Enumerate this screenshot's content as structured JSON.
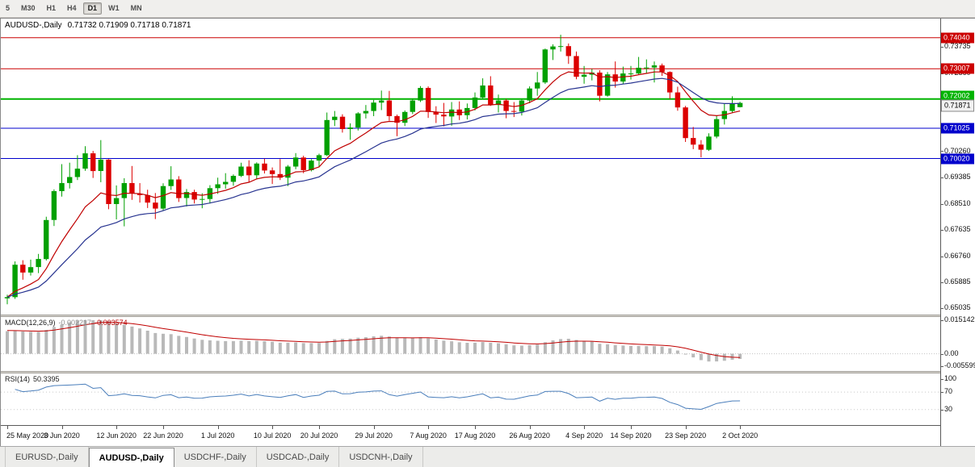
{
  "toolbar": {
    "buttons": [
      {
        "label": "5",
        "active": false
      },
      {
        "label": "M30",
        "active": false
      },
      {
        "label": "H1",
        "active": false
      },
      {
        "label": "H4",
        "active": false
      },
      {
        "label": "D1",
        "active": true
      },
      {
        "label": "W1",
        "active": false
      },
      {
        "label": "MN",
        "active": false
      }
    ]
  },
  "chart": {
    "title": "AUDUSD-,Daily",
    "ohlc": "0.71732 0.71909 0.71718 0.71871"
  },
  "macd": {
    "label": "MACD(12,26,9)",
    "value_main": "-0.002217",
    "value_signal": "-0.003574"
  },
  "rsi": {
    "label": "RSI(14)",
    "value": "50.3395"
  },
  "tabs": [
    {
      "label": "EURUSD-,Daily",
      "active": false
    },
    {
      "label": "AUDUSD-,Daily",
      "active": true
    },
    {
      "label": "USDCHF-,Daily",
      "active": false
    },
    {
      "label": "USDCAD-,Daily",
      "active": false
    },
    {
      "label": "USDCNH-,Daily",
      "active": false
    }
  ],
  "colors": {
    "up": "#00a000",
    "down": "#dc0000",
    "ma_fast": "#c00000",
    "ma_slow": "#273390",
    "macd_hist": "#b9b9b9",
    "macd_signal": "#c00000",
    "rsi_line": "#4a7ebb",
    "level_red": "#cc0000",
    "level_green": "#00b400",
    "level_blue": "#0000cc"
  },
  "chart_data": {
    "type": "candlestick",
    "symbol": "AUDUSD-",
    "timeframe": "Daily",
    "ohlc_display": {
      "open": "0.71732",
      "high": "0.71909",
      "low": "0.71718",
      "close": "0.71871"
    },
    "ylim": [
      0.6482,
      0.7468
    ],
    "y_ticks": [
      "0.73735",
      "0.72860",
      "0.71985",
      "0.71110",
      "0.70260",
      "0.69385",
      "0.68510",
      "0.67635",
      "0.66760",
      "0.65885",
      "0.65035"
    ],
    "x_ticks": [
      {
        "index": 0,
        "label": "25 May 2020"
      },
      {
        "index": 7,
        "label": "3 Jun 2020"
      },
      {
        "index": 14,
        "label": "12 Jun 2020"
      },
      {
        "index": 20,
        "label": "22 Jun 2020"
      },
      {
        "index": 27,
        "label": "1 Jul 2020"
      },
      {
        "index": 34,
        "label": "10 Jul 2020"
      },
      {
        "index": 40,
        "label": "20 Jul 2020"
      },
      {
        "index": 47,
        "label": "29 Jul 2020"
      },
      {
        "index": 54,
        "label": "7 Aug 2020"
      },
      {
        "index": 60,
        "label": "17 Aug 2020"
      },
      {
        "index": 67,
        "label": "26 Aug 2020"
      },
      {
        "index": 74,
        "label": "4 Sep 2020"
      },
      {
        "index": 80,
        "label": "14 Sep 2020"
      },
      {
        "index": 87,
        "label": "23 Sep 2020"
      },
      {
        "index": 94,
        "label": "2 Oct 2020"
      }
    ],
    "levels": [
      {
        "price": 0.7404,
        "label": "0.74040",
        "color": "#cc0000",
        "width": 1
      },
      {
        "price": 0.73007,
        "label": "0.73007",
        "color": "#cc0000",
        "width": 1
      },
      {
        "price": 0.72002,
        "label": "0.72002",
        "color": "#00b400",
        "width": 2
      },
      {
        "price": 0.71025,
        "label": "0.71025",
        "color": "#0000cc",
        "width": 1
      },
      {
        "price": 0.7002,
        "label": "0.70020",
        "color": "#0000cc",
        "width": 1
      }
    ],
    "current_price": {
      "price": 0.71871,
      "label": "0.71871"
    },
    "moving_averages": [
      {
        "name": "fast-ma",
        "period": 10,
        "color": "#c00000"
      },
      {
        "name": "slow-ma",
        "period": 21,
        "color": "#273390"
      }
    ],
    "indicators": {
      "macd": {
        "params": [
          12,
          26,
          9
        ],
        "values_text": [
          "-0.002217",
          "-0.003574"
        ],
        "range": [
          -0.005599,
          0.015142
        ],
        "axis_ticks": [
          {
            "value": 0.015142,
            "label": "0.015142"
          },
          {
            "value": 0,
            "label": "0.00"
          },
          {
            "value": -0.005599,
            "label": "-0.005599"
          }
        ]
      },
      "rsi": {
        "period": 14,
        "value_text": "50.3395",
        "levels": [
          70,
          30
        ],
        "scale": [
          0,
          107
        ],
        "axis_ticks": [
          {
            "value": 100,
            "label": "100"
          },
          {
            "value": 70,
            "label": "70"
          },
          {
            "value": 30,
            "label": "30"
          }
        ]
      }
    },
    "candles": [
      [
        0.6536,
        0.6548,
        0.6516,
        0.654
      ],
      [
        0.654,
        0.6659,
        0.6534,
        0.6648
      ],
      [
        0.6648,
        0.6663,
        0.6598,
        0.6622
      ],
      [
        0.6622,
        0.6665,
        0.6612,
        0.664
      ],
      [
        0.664,
        0.6684,
        0.662,
        0.6667
      ],
      [
        0.6667,
        0.6808,
        0.6662,
        0.6797
      ],
      [
        0.6797,
        0.6899,
        0.6777,
        0.6893
      ],
      [
        0.6893,
        0.6983,
        0.6875,
        0.692
      ],
      [
        0.692,
        0.6988,
        0.6902,
        0.694
      ],
      [
        0.694,
        0.7013,
        0.693,
        0.6968
      ],
      [
        0.6968,
        0.7043,
        0.6961,
        0.7019
      ],
      [
        0.7019,
        0.7027,
        0.6937,
        0.696
      ],
      [
        0.696,
        0.7063,
        0.6923,
        0.6998
      ],
      [
        0.6998,
        0.7,
        0.6833,
        0.685
      ],
      [
        0.685,
        0.6912,
        0.6799,
        0.687
      ],
      [
        0.687,
        0.6936,
        0.6776,
        0.692
      ],
      [
        0.692,
        0.6977,
        0.6864,
        0.6885
      ],
      [
        0.6885,
        0.692,
        0.6855,
        0.688
      ],
      [
        0.688,
        0.6898,
        0.6837,
        0.6855
      ],
      [
        0.6855,
        0.6887,
        0.68,
        0.6835
      ],
      [
        0.6835,
        0.6919,
        0.683,
        0.691
      ],
      [
        0.691,
        0.6976,
        0.6897,
        0.6932
      ],
      [
        0.6932,
        0.6943,
        0.6857,
        0.687
      ],
      [
        0.687,
        0.69,
        0.6842,
        0.689
      ],
      [
        0.689,
        0.6898,
        0.6852,
        0.6865
      ],
      [
        0.6865,
        0.6886,
        0.6836,
        0.6867
      ],
      [
        0.6867,
        0.6913,
        0.6852,
        0.6903
      ],
      [
        0.6903,
        0.6938,
        0.6884,
        0.6916
      ],
      [
        0.6916,
        0.6953,
        0.6901,
        0.6924
      ],
      [
        0.6924,
        0.6949,
        0.6911,
        0.6944
      ],
      [
        0.6944,
        0.6988,
        0.694,
        0.6975
      ],
      [
        0.6975,
        0.6996,
        0.6922,
        0.6946
      ],
      [
        0.6946,
        0.6989,
        0.6932,
        0.6985
      ],
      [
        0.6985,
        0.7001,
        0.6952,
        0.6962
      ],
      [
        0.6962,
        0.6972,
        0.6917,
        0.695
      ],
      [
        0.695,
        0.7,
        0.693,
        0.6938
      ],
      [
        0.6938,
        0.698,
        0.691,
        0.6975
      ],
      [
        0.6975,
        0.702,
        0.6966,
        0.7005
      ],
      [
        0.7005,
        0.7011,
        0.6953,
        0.6963
      ],
      [
        0.6963,
        0.7,
        0.6959,
        0.6995
      ],
      [
        0.6995,
        0.7018,
        0.6975,
        0.7013
      ],
      [
        0.7013,
        0.7155,
        0.701,
        0.713
      ],
      [
        0.713,
        0.716,
        0.711,
        0.7141
      ],
      [
        0.7141,
        0.7149,
        0.7088,
        0.71
      ],
      [
        0.71,
        0.7119,
        0.7064,
        0.7105
      ],
      [
        0.7105,
        0.7156,
        0.7095,
        0.7152
      ],
      [
        0.7152,
        0.718,
        0.7135,
        0.716
      ],
      [
        0.716,
        0.7197,
        0.7143,
        0.7188
      ],
      [
        0.7188,
        0.7228,
        0.7163,
        0.7195
      ],
      [
        0.7195,
        0.7227,
        0.7128,
        0.7143
      ],
      [
        0.7143,
        0.7148,
        0.7076,
        0.7121
      ],
      [
        0.7121,
        0.7162,
        0.711,
        0.7157
      ],
      [
        0.7157,
        0.7202,
        0.715,
        0.7195
      ],
      [
        0.7195,
        0.7243,
        0.719,
        0.7237
      ],
      [
        0.7237,
        0.7242,
        0.7137,
        0.7157
      ],
      [
        0.7157,
        0.7176,
        0.712,
        0.7148
      ],
      [
        0.7148,
        0.7187,
        0.7109,
        0.7142
      ],
      [
        0.7142,
        0.719,
        0.7111,
        0.7165
      ],
      [
        0.7165,
        0.7192,
        0.713,
        0.7146
      ],
      [
        0.7146,
        0.7185,
        0.7132,
        0.717
      ],
      [
        0.717,
        0.7222,
        0.7162,
        0.7205
      ],
      [
        0.7205,
        0.7269,
        0.7202,
        0.7245
      ],
      [
        0.7245,
        0.7276,
        0.7177,
        0.718
      ],
      [
        0.718,
        0.7215,
        0.7155,
        0.7195
      ],
      [
        0.7195,
        0.72,
        0.7136,
        0.716
      ],
      [
        0.716,
        0.719,
        0.714,
        0.7158
      ],
      [
        0.7158,
        0.7198,
        0.7145,
        0.7195
      ],
      [
        0.7195,
        0.7242,
        0.7186,
        0.7235
      ],
      [
        0.7235,
        0.729,
        0.7211,
        0.7255
      ],
      [
        0.7255,
        0.7368,
        0.725,
        0.7365
      ],
      [
        0.7365,
        0.7382,
        0.733,
        0.7375
      ],
      [
        0.7375,
        0.7414,
        0.7358,
        0.7376
      ],
      [
        0.7376,
        0.7385,
        0.7317,
        0.7343
      ],
      [
        0.7343,
        0.7358,
        0.7266,
        0.7274
      ],
      [
        0.7274,
        0.731,
        0.7251,
        0.7281
      ],
      [
        0.7281,
        0.73,
        0.7262,
        0.7288
      ],
      [
        0.7288,
        0.7296,
        0.7192,
        0.7211
      ],
      [
        0.7211,
        0.729,
        0.7208,
        0.7282
      ],
      [
        0.7282,
        0.7325,
        0.7238,
        0.7258
      ],
      [
        0.7258,
        0.7308,
        0.725,
        0.7285
      ],
      [
        0.7285,
        0.731,
        0.7265,
        0.7285
      ],
      [
        0.7285,
        0.734,
        0.728,
        0.7304
      ],
      [
        0.7304,
        0.7332,
        0.7284,
        0.7305
      ],
      [
        0.7305,
        0.7325,
        0.7255,
        0.7312
      ],
      [
        0.7312,
        0.7318,
        0.7277,
        0.729
      ],
      [
        0.729,
        0.7292,
        0.72,
        0.7222
      ],
      [
        0.7222,
        0.7241,
        0.7161,
        0.7172
      ],
      [
        0.7172,
        0.7177,
        0.7057,
        0.707
      ],
      [
        0.707,
        0.7107,
        0.7033,
        0.7048
      ],
      [
        0.7048,
        0.7063,
        0.7006,
        0.7031
      ],
      [
        0.7031,
        0.7086,
        0.7027,
        0.7075
      ],
      [
        0.7075,
        0.7145,
        0.7069,
        0.7133
      ],
      [
        0.7133,
        0.7185,
        0.7115,
        0.716
      ],
      [
        0.716,
        0.7209,
        0.7155,
        0.7185
      ],
      [
        0.71732,
        0.71909,
        0.71718,
        0.71871
      ]
    ]
  }
}
